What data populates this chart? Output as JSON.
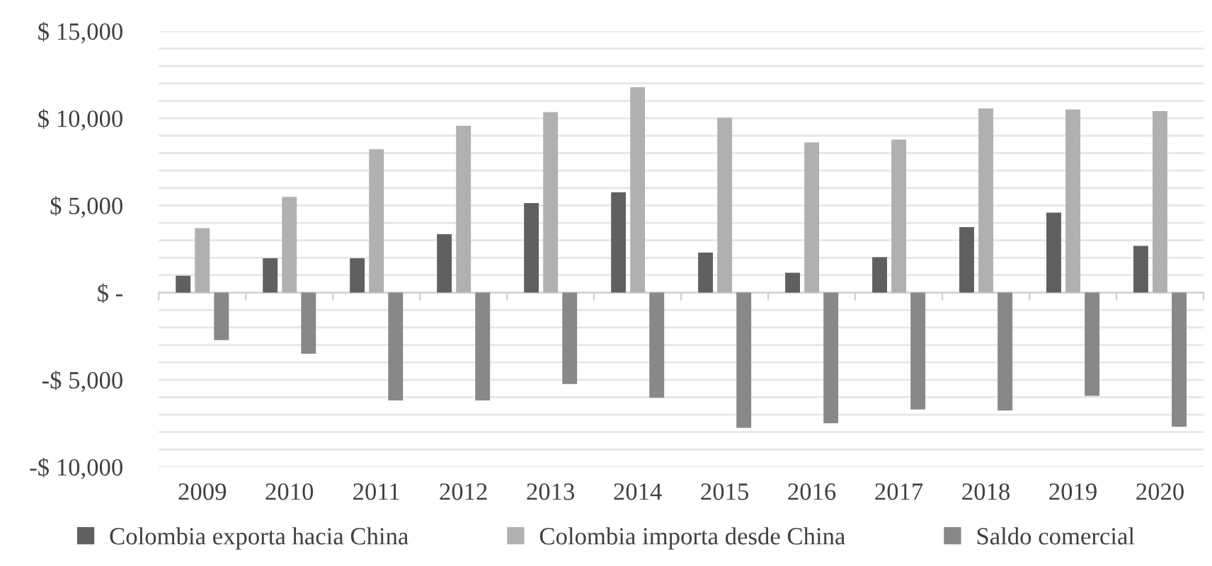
{
  "chart_data": {
    "type": "bar",
    "categories": [
      "2009",
      "2010",
      "2011",
      "2012",
      "2013",
      "2014",
      "2015",
      "2016",
      "2017",
      "2018",
      "2019",
      "2020"
    ],
    "series": [
      {
        "name": "Colombia exporta hacia China",
        "color": "#606060",
        "values": [
          970,
          1970,
          1970,
          3350,
          5140,
          5760,
          2300,
          1140,
          2030,
          3760,
          4590,
          2680
        ]
      },
      {
        "name": "Colombia importa desde China",
        "color": "#b0b0b0",
        "values": [
          3700,
          5490,
          8220,
          9570,
          10350,
          11780,
          10030,
          8620,
          8780,
          10570,
          10510,
          10410
        ]
      },
      {
        "name": "Saldo comercial",
        "color": "#888888",
        "values": [
          -2730,
          -3510,
          -6190,
          -6190,
          -5240,
          -6030,
          -7760,
          -7490,
          -6700,
          -6760,
          -5920,
          -7700
        ]
      }
    ],
    "ylim": [
      -10000,
      15000
    ],
    "yticks": [
      {
        "value": -10000,
        "label": "-$ 10,000"
      },
      {
        "value": -9000,
        "label": null
      },
      {
        "value": -8000,
        "label": null
      },
      {
        "value": -7000,
        "label": null
      },
      {
        "value": -6000,
        "label": null
      },
      {
        "value": -5000,
        "label": "-$ 5,000"
      },
      {
        "value": -4000,
        "label": null
      },
      {
        "value": -3000,
        "label": null
      },
      {
        "value": -2000,
        "label": null
      },
      {
        "value": -1000,
        "label": null
      },
      {
        "value": 0,
        "label": "$ -"
      },
      {
        "value": 1000,
        "label": null
      },
      {
        "value": 2000,
        "label": null
      },
      {
        "value": 3000,
        "label": null
      },
      {
        "value": 4000,
        "label": null
      },
      {
        "value": 5000,
        "label": "$ 5,000"
      },
      {
        "value": 6000,
        "label": null
      },
      {
        "value": 7000,
        "label": null
      },
      {
        "value": 8000,
        "label": null
      },
      {
        "value": 9000,
        "label": null
      },
      {
        "value": 10000,
        "label": "$ 10,000"
      },
      {
        "value": 11000,
        "label": null
      },
      {
        "value": 12000,
        "label": null
      },
      {
        "value": 13000,
        "label": null
      },
      {
        "value": 14000,
        "label": null
      },
      {
        "value": 15000,
        "label": "$ 15,000"
      }
    ],
    "grid": "y",
    "legend": "bottom"
  }
}
